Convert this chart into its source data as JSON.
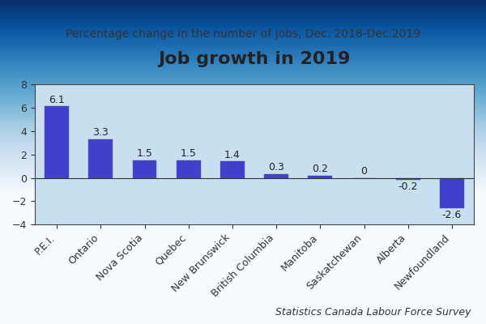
{
  "title": "Job growth in 2019",
  "subtitle": "Percentage change in the number of jobs, Dec. 2018-Dec.2019",
  "source": "Statistics Canada Labour Force Survey",
  "categories": [
    "P.E.I.",
    "Ontario",
    "Nova Scotia",
    "Quebec",
    "New Brunswick",
    "British Columbia",
    "Manitoba",
    "Saskatchewan",
    "Alberta",
    "Newfoundland"
  ],
  "values": [
    6.1,
    3.3,
    1.5,
    1.5,
    1.4,
    0.3,
    0.2,
    0,
    -0.2,
    -2.6
  ],
  "bar_color": "#4040cc",
  "ylim": [
    -4,
    8
  ],
  "yticks": [
    -4,
    -2,
    0,
    2,
    4,
    6,
    8
  ],
  "bg_top": "#adc8e0",
  "bg_bottom": "#ddeeff",
  "plot_bg_top": "#b8d0e8",
  "plot_bg_bottom": "#e8f4ff",
  "title_fontsize": 16,
  "subtitle_fontsize": 10,
  "source_fontsize": 9,
  "label_fontsize": 9,
  "tick_fontsize": 9
}
